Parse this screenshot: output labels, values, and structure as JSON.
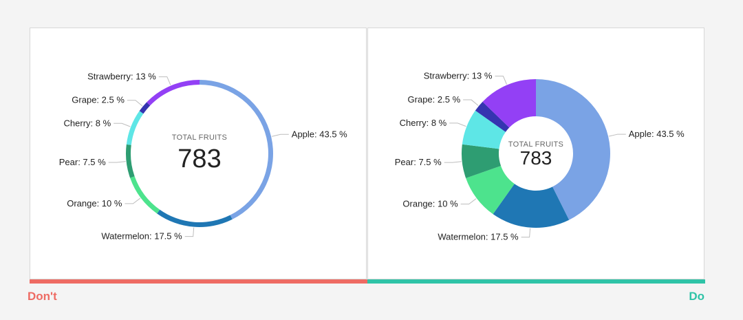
{
  "verdict": {
    "dont_label": "Don't",
    "dont_color": "#ee6b63",
    "do_label": "Do",
    "do_color": "#2fc3a7"
  },
  "chart_data": [
    {
      "type": "pie",
      "variant": "thin-ring",
      "center_title": "TOTAL FRUITS",
      "center_total": "783",
      "slices": [
        {
          "name": "Apple",
          "value": 43.5,
          "label": "Apple: 43.5 %",
          "color": "#7aa3e5"
        },
        {
          "name": "Watermelon",
          "value": 17.5,
          "label": "Watermelon: 17.5 %",
          "color": "#1f77b4"
        },
        {
          "name": "Orange",
          "value": 10,
          "label": "Orange: 10 %",
          "color": "#4de38d"
        },
        {
          "name": "Pear",
          "value": 7.5,
          "label": "Pear: 7.5 %",
          "color": "#2e9d72"
        },
        {
          "name": "Cherry",
          "value": 8,
          "label": "Cherry: 8 %",
          "color": "#5ee6e6"
        },
        {
          "name": "Grape",
          "value": 2.5,
          "label": "Grape: 2.5 %",
          "color": "#3534b0"
        },
        {
          "name": "Strawberry",
          "value": 13,
          "label": "Strawberry: 13 %",
          "color": "#9340f5"
        }
      ]
    },
    {
      "type": "pie",
      "variant": "thick-donut",
      "center_title": "TOTAL FRUITS",
      "center_total": "783",
      "slices": [
        {
          "name": "Apple",
          "value": 43.5,
          "label": "Apple: 43.5 %",
          "color": "#7aa3e5"
        },
        {
          "name": "Watermelon",
          "value": 17.5,
          "label": "Watermelon: 17.5 %",
          "color": "#1f77b4"
        },
        {
          "name": "Orange",
          "value": 10,
          "label": "Orange: 10 %",
          "color": "#4de38d"
        },
        {
          "name": "Pear",
          "value": 7.5,
          "label": "Pear: 7.5 %",
          "color": "#2e9d72"
        },
        {
          "name": "Cherry",
          "value": 8,
          "label": "Cherry: 8 %",
          "color": "#5ee6e6"
        },
        {
          "name": "Grape",
          "value": 2.5,
          "label": "Grape: 2.5 %",
          "color": "#3534b0"
        },
        {
          "name": "Strawberry",
          "value": 13,
          "label": "Strawberry: 13 %",
          "color": "#9340f5"
        }
      ]
    }
  ]
}
